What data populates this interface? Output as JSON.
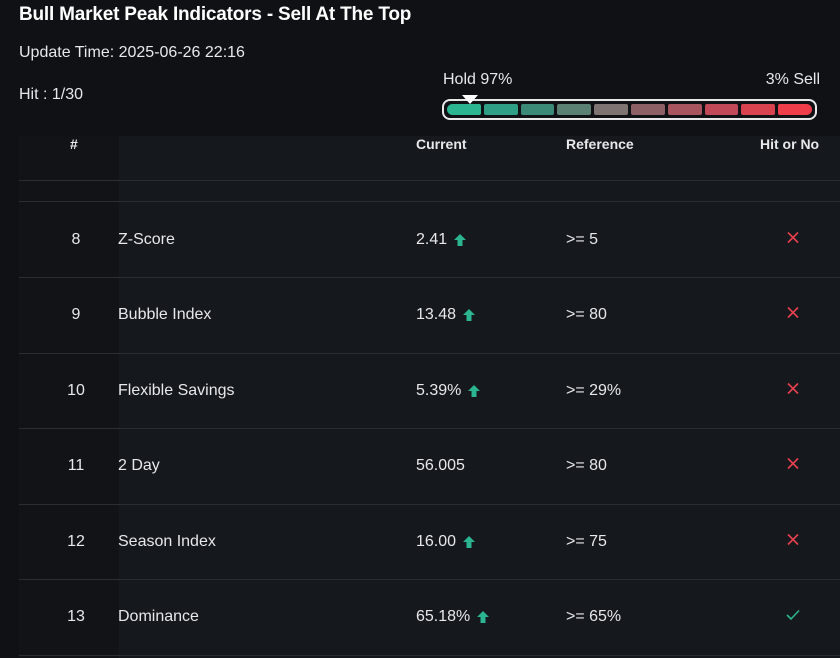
{
  "header": {
    "title": "Bull Market Peak Indicators - Sell At The Top",
    "update_time": "Update Time: 2025-06-26 22:16",
    "hit": "Hit : 1/30"
  },
  "meter": {
    "hold_label": "Hold 97%",
    "sell_label": "3% Sell",
    "hold_percent": 97,
    "segment_colors": [
      "#2bb591",
      "#2fa085",
      "#3a8a77",
      "#5a8173",
      "#7e7471",
      "#8d6066",
      "#a85560",
      "#c24a58",
      "#d8434f",
      "#ef3e4a"
    ]
  },
  "table": {
    "headers": {
      "num": "#",
      "current": "Current",
      "reference": "Reference",
      "hit": "Hit or No"
    },
    "rows": [
      {
        "num": "8",
        "name": "Z-Score",
        "current": "2.41",
        "trend": "up",
        "reference": ">= 5",
        "hit": "no"
      },
      {
        "num": "9",
        "name": "Bubble Index",
        "current": "13.48",
        "trend": "up",
        "reference": ">= 80",
        "hit": "no"
      },
      {
        "num": "10",
        "name": "Flexible Savings",
        "current": "5.39%",
        "trend": "up",
        "reference": ">= 29%",
        "hit": "no"
      },
      {
        "num": "11",
        "name": "2 Day",
        "current": "56.005",
        "trend": "none",
        "reference": ">= 80",
        "hit": "no"
      },
      {
        "num": "12",
        "name": "Season Index",
        "current": "16.00",
        "trend": "up",
        "reference": ">= 75",
        "hit": "no"
      },
      {
        "num": "13",
        "name": "Dominance",
        "current": "65.18%",
        "trend": "up",
        "reference": ">= 65%",
        "hit": "yes"
      }
    ]
  },
  "colors": {
    "up_arrow": "#2bb591",
    "cross": "#e8414e",
    "check": "#2bb591"
  }
}
